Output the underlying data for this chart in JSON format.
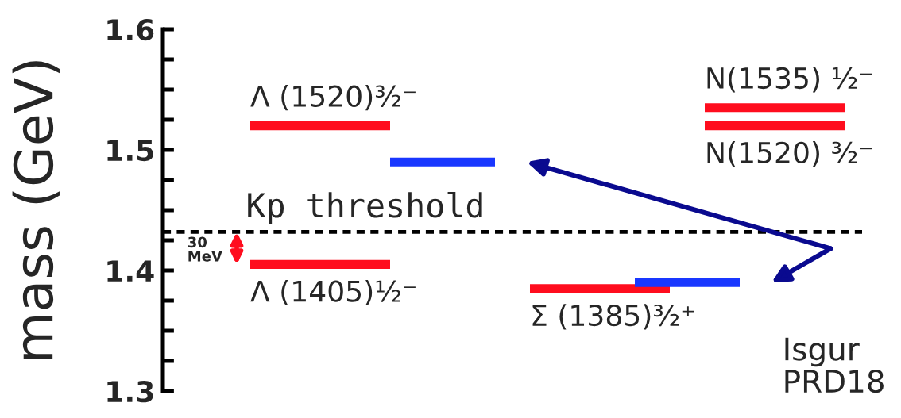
{
  "chart_data": {
    "type": "line",
    "ylabel": "mass (GeV)",
    "ylim": [
      1.3,
      1.6
    ],
    "yticks": [
      1.3,
      {
        "value": 1.325,
        "label": null
      },
      {
        "value": 1.35,
        "label": null
      },
      {
        "value": 1.375,
        "label": null
      },
      1.4,
      {
        "value": 1.425,
        "label": null
      },
      {
        "value": 1.45,
        "label": null
      },
      {
        "value": 1.475,
        "label": null
      },
      1.5,
      {
        "value": 1.525,
        "label": null
      },
      {
        "value": 1.55,
        "label": null
      },
      {
        "value": 1.575,
        "label": null
      },
      1.6
    ],
    "tick_labels": "y",
    "categories": [
      null,
      null,
      null,
      null,
      null,
      null,
      null,
      null,
      null,
      null,
      null,
      null,
      null,
      null,
      null,
      null,
      null,
      null,
      null,
      null
    ],
    "series": [
      {
        "name": "Λ (1520)³⁄₂⁻",
        "color": "#ff0d1e",
        "values": [
          null,
          null,
          1.52,
          1.52,
          1.52,
          1.52,
          1.52,
          null,
          null,
          null,
          null,
          null,
          null,
          null,
          null,
          null,
          null,
          null,
          null,
          null
        ]
      },
      {
        "name": "Λ (1405)¹⁄₂⁻",
        "color": "#ff0d1e",
        "values": [
          null,
          null,
          1.405,
          1.405,
          1.405,
          1.405,
          1.405,
          null,
          null,
          null,
          null,
          null,
          null,
          null,
          null,
          null,
          null,
          null,
          null,
          null
        ]
      },
      {
        "name": "Σ (1385)³⁄₂⁺",
        "color": "#ff0d1e",
        "values": [
          null,
          null,
          null,
          null,
          null,
          null,
          null,
          null,
          null,
          null,
          1.385,
          1.385,
          1.385,
          1.385,
          1.385,
          null,
          null,
          null,
          null,
          null
        ]
      },
      {
        "name": "N(1535) ¹⁄₂⁻",
        "color": "#ff0d1e",
        "values": [
          null,
          null,
          null,
          null,
          null,
          null,
          null,
          null,
          null,
          null,
          null,
          null,
          null,
          null,
          null,
          1.535,
          1.535,
          1.535,
          1.535,
          1.535
        ]
      },
      {
        "name": "N(1520) ³⁄₂⁻",
        "color": "#ff0d1e",
        "values": [
          null,
          null,
          null,
          null,
          null,
          null,
          null,
          null,
          null,
          null,
          null,
          null,
          null,
          null,
          null,
          1.52,
          1.52,
          1.52,
          1.52,
          1.52
        ]
      },
      {
        "name": "Isgur\nPRD18",
        "color": "#1937ff",
        "values": [
          null,
          null,
          null,
          null,
          null,
          null,
          1.49,
          1.49,
          1.49,
          1.49,
          null,
          null,
          null,
          1.39,
          1.39,
          1.39,
          1.39,
          null,
          null,
          null
        ]
      }
    ],
    "ref_lines": [
      {
        "axis": "y",
        "value": 1.432,
        "label": "Kp threshold",
        "color": "#000000",
        "line_style": "dashed"
      }
    ],
    "annotations": [
      "30\nMeV"
    ]
  }
}
